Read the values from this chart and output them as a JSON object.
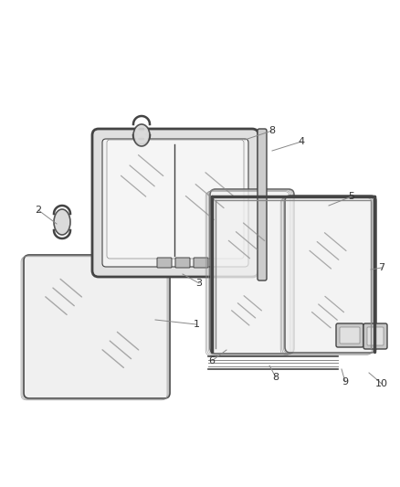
{
  "bg_color": "#ffffff",
  "lc": "#444444",
  "lc2": "#888888",
  "glass_fc": "#f0f0f0",
  "frame_fc": "#d8d8d8",
  "label_color": "#333333",
  "figsize": [
    4.38,
    5.33
  ],
  "dpi": 100
}
